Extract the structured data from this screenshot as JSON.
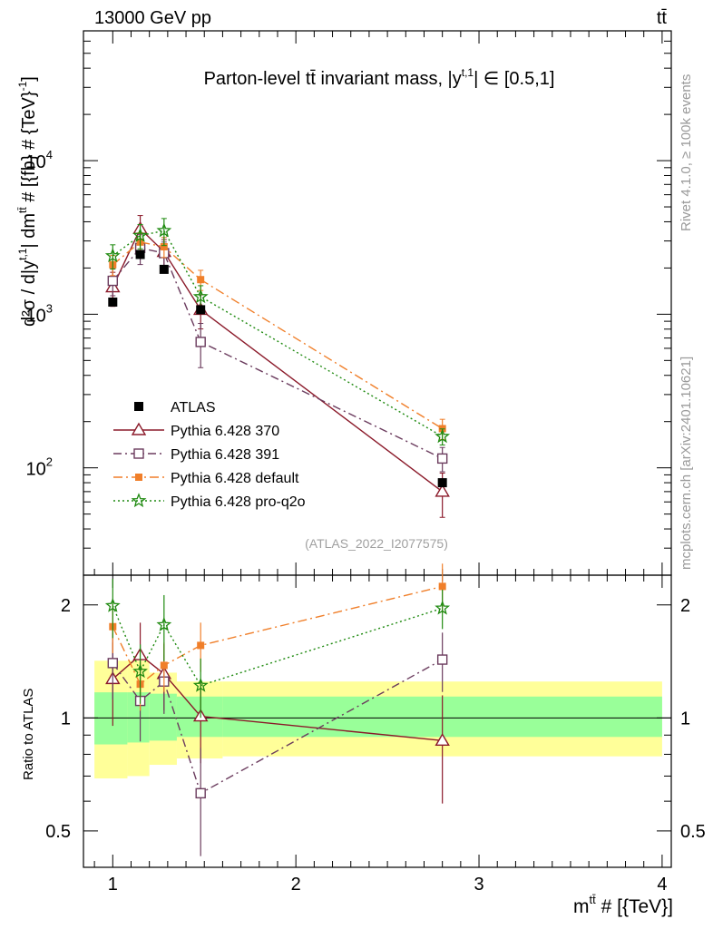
{
  "header": {
    "energy_label": "13000 GeV pp",
    "process_label": "tt̄"
  },
  "side_labels": {
    "rivet": "Rivet 4.1.0, ≥ 100k events",
    "mcplots": "mcplots.cern.ch [arXiv:2401.10621]"
  },
  "chart_data": {
    "type": "scatter",
    "title": "Parton-level tt̄ invariant mass, |y^{t,1}| ∈ [0.5,1]",
    "title_main": "Parton-level tt̄ invariant mass, |y",
    "title_sup": "t,1",
    "title_tail": "| ∈ [0.5,1]",
    "analysis_tag": "(ATLAS_2022_I2077575)",
    "xlabel": "m^{tt̄} # [{TeV}]",
    "xlabel_base": "m",
    "xlabel_sup": "tt̄",
    "xlabel_tail": " # [{TeV}]",
    "ylabel": "d²σ / d|y^{t,1}| dm^{tt̄} # [{fb} # {TeV}⁻¹]",
    "ylabel_main": "d²σ / d|y",
    "ylabel_sup1": "t,1",
    "ylabel_mid": "| dm",
    "ylabel_sup2": "tt̄",
    "ylabel_tail": " # [{fb} # {TeV}",
    "ylabel_sup3": "-1",
    "ylabel_end": "]",
    "ratio_ylabel": "Ratio to ATLAS",
    "xlim": [
      0.84,
      4.05
    ],
    "ylim_main": [
      20,
      70000
    ],
    "yscale_main": "log",
    "ylim_ratio": [
      0.4,
      2.4
    ],
    "yscale_ratio": "log",
    "x_ticks": [
      1,
      2,
      3,
      4
    ],
    "x_tick_labels": [
      "1",
      "2",
      "3",
      "4"
    ],
    "y_ticks_main": [
      100,
      1000,
      10000
    ],
    "y_tick_labels_main": [
      {
        "base": "10",
        "exp": "2"
      },
      {
        "base": "10",
        "exp": "3"
      },
      {
        "base": "10",
        "exp": "4"
      }
    ],
    "y_ticks_ratio": [
      0.5,
      1,
      2
    ],
    "y_tick_labels_ratio": [
      "0.5",
      "1",
      "2"
    ],
    "legend_position": "center-left",
    "x": [
      1.0,
      1.15,
      1.28,
      1.48,
      2.8
    ],
    "data": {
      "name": "ATLAS",
      "values": [
        1200,
        2450,
        1960,
        1070,
        80
      ],
      "bins": [
        [
          0.9,
          1.08
        ],
        [
          1.08,
          1.2
        ],
        [
          1.2,
          1.35
        ],
        [
          1.35,
          1.6
        ],
        [
          1.6,
          4.0
        ]
      ],
      "band_inner": [
        [
          0.85,
          1.17
        ],
        [
          0.86,
          1.17
        ],
        [
          0.87,
          1.16
        ],
        [
          0.89,
          1.14
        ],
        [
          0.89,
          1.14
        ]
      ],
      "band_outer": [
        [
          0.69,
          1.42
        ],
        [
          0.7,
          1.42
        ],
        [
          0.75,
          1.32
        ],
        [
          0.78,
          1.25
        ],
        [
          0.79,
          1.25
        ]
      ]
    },
    "series": [
      {
        "name": "Pythia 6.428 370",
        "color": "#8b1a2a",
        "marker": "triangle-open",
        "dash": "",
        "values": [
          1500,
          3600,
          2550,
          1070,
          70
        ],
        "errors": [
          0.25,
          0.22,
          0.2,
          0.25,
          0.32
        ],
        "ratio": [
          1.27,
          1.47,
          1.31,
          1.01,
          0.87
        ]
      },
      {
        "name": "Pythia 6.428 391",
        "color": "#6b3c5e",
        "marker": "square-open",
        "dash": "9,4,2,4",
        "values": [
          1650,
          2700,
          2500,
          660,
          115
        ],
        "errors": [
          0.2,
          0.22,
          0.18,
          0.32,
          0.18
        ],
        "ratio": [
          1.4,
          1.11,
          1.25,
          0.63,
          1.43
        ]
      },
      {
        "name": "Pythia 6.428 default",
        "color": "#f07f2a",
        "marker": "square-filled",
        "dash": "10,4,2,4",
        "values": [
          2100,
          2950,
          2750,
          1680,
          180
        ],
        "errors": [
          0.15,
          0.15,
          0.15,
          0.15,
          0.15
        ],
        "ratio": [
          1.75,
          1.23,
          1.38,
          1.56,
          2.24
        ]
      },
      {
        "name": "Pythia 6.428 pro-q2o",
        "color": "#1f8a10",
        "marker": "star",
        "dash": "2,3",
        "values": [
          2400,
          3250,
          3500,
          1300,
          160
        ],
        "errors": [
          0.18,
          0.18,
          0.2,
          0.18,
          0.12
        ],
        "ratio": [
          1.99,
          1.33,
          1.77,
          1.22,
          1.96
        ]
      }
    ]
  }
}
